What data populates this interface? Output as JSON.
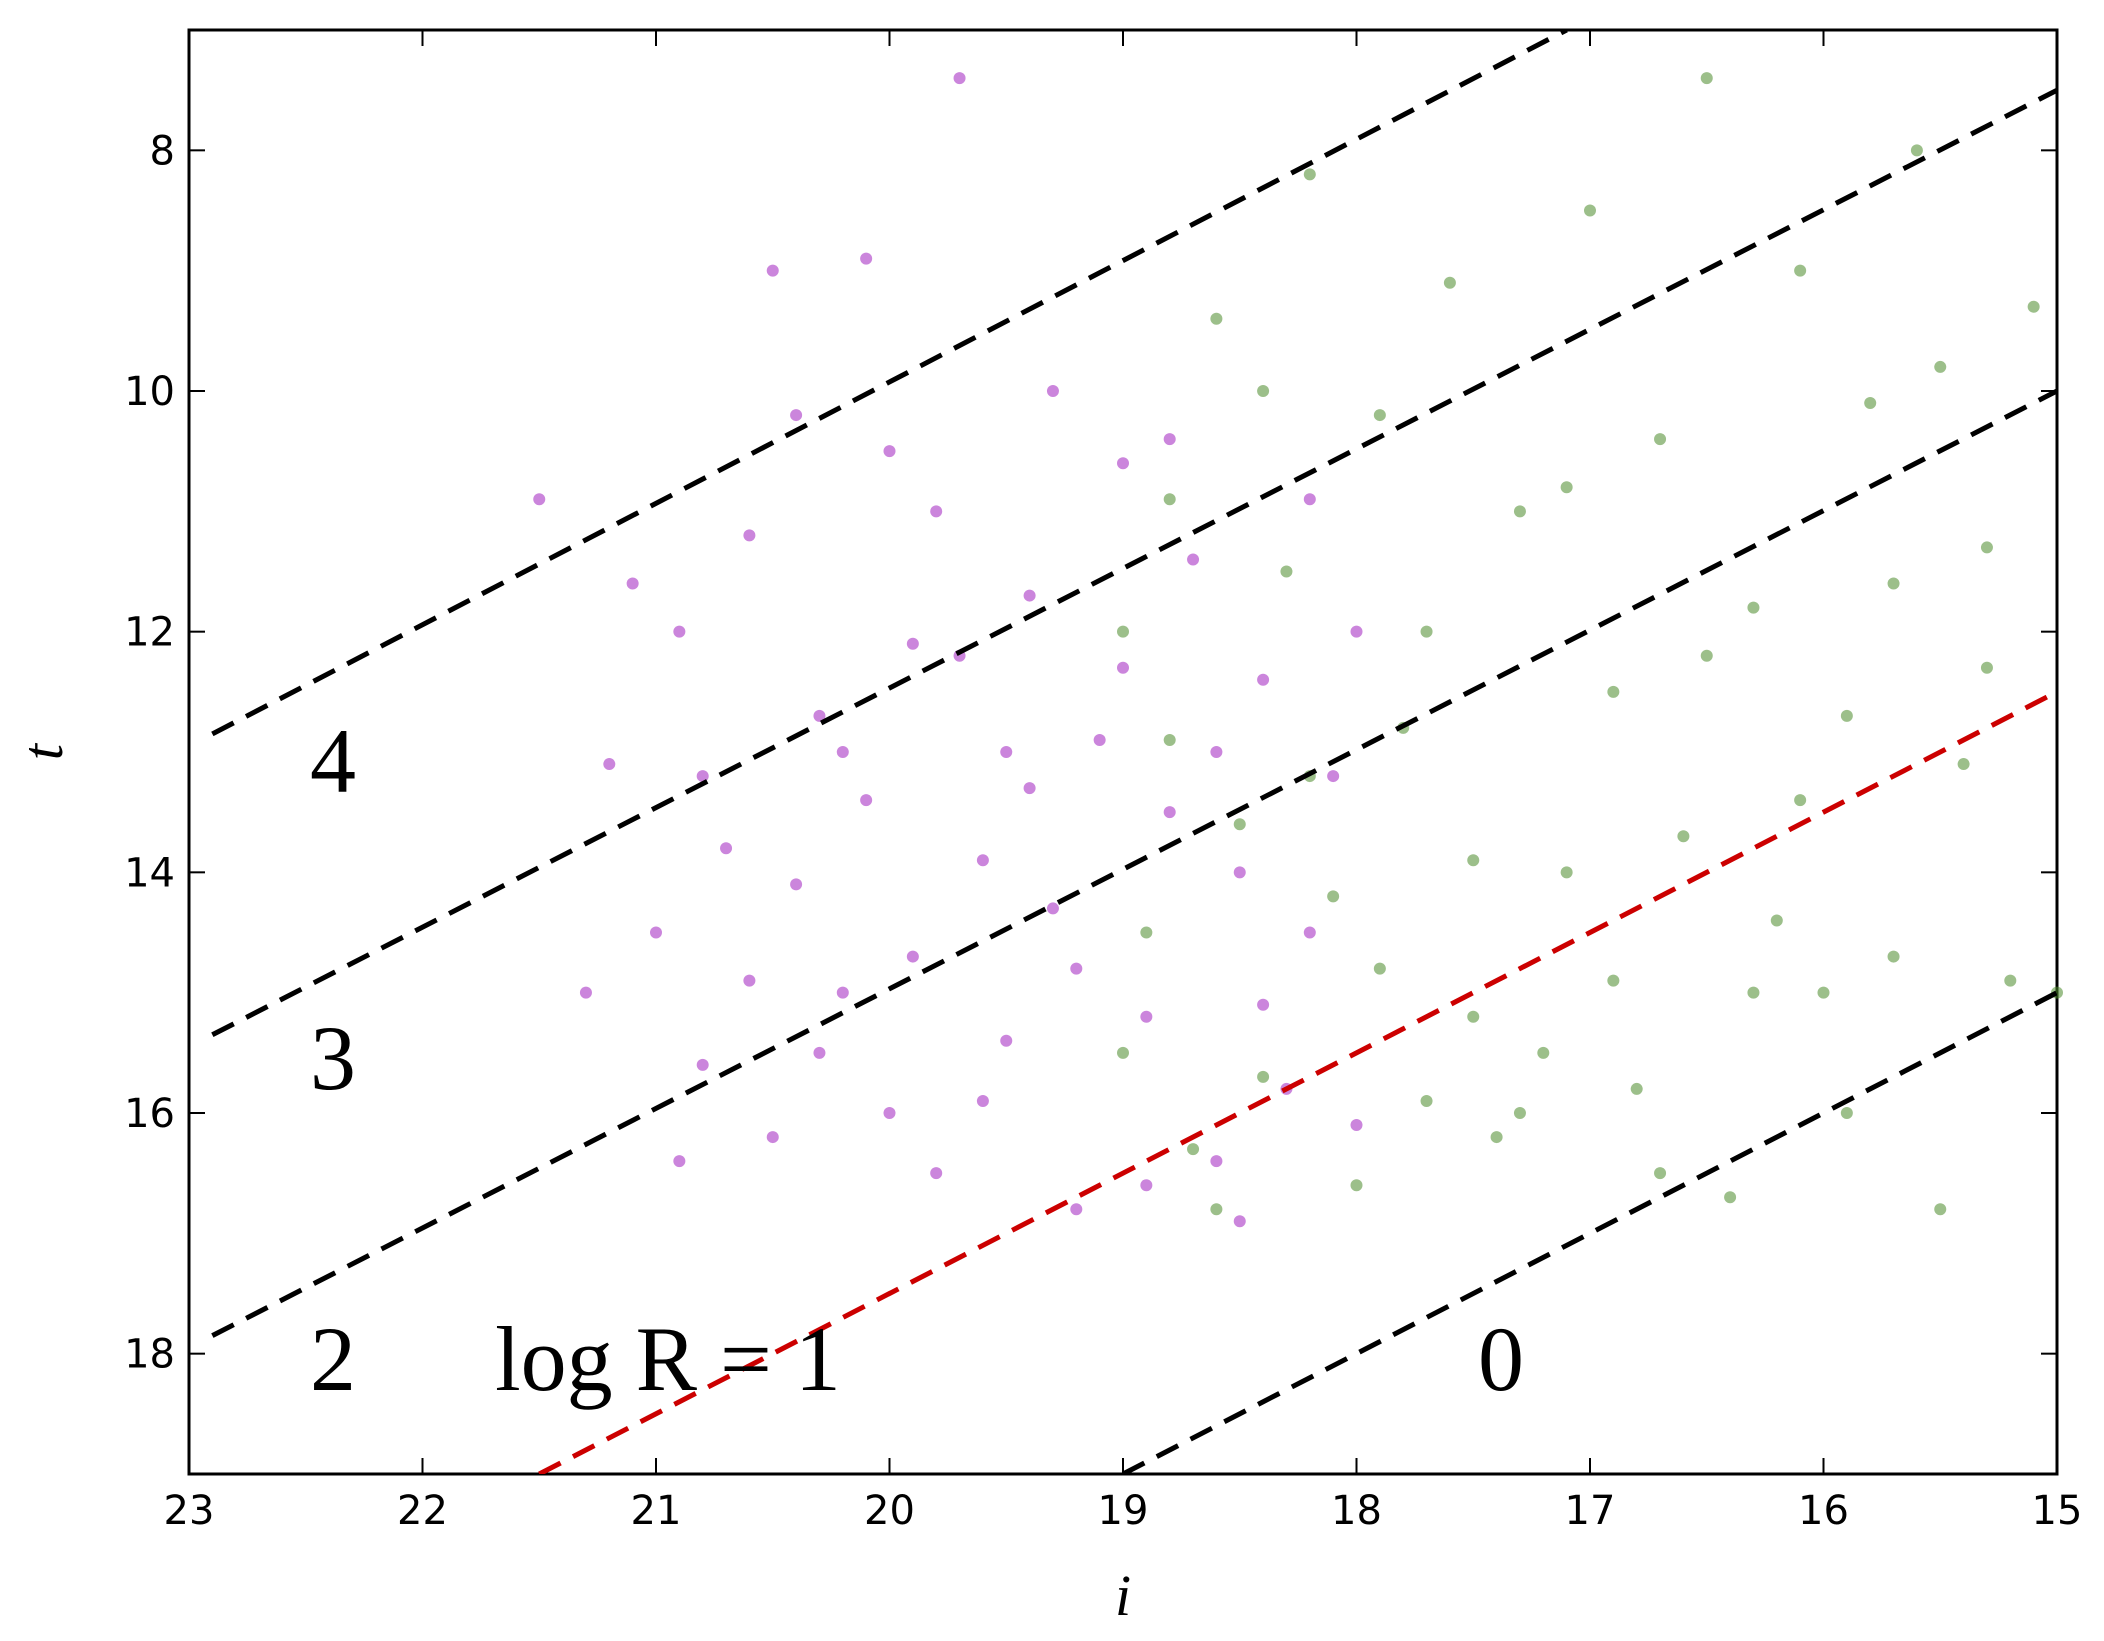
{
  "chart_data": {
    "type": "scatter",
    "x_label": "i",
    "y_label": "t",
    "xlim": [
      23,
      15
    ],
    "ylim": [
      19,
      7
    ],
    "xticks": [
      23,
      22,
      21,
      20,
      19,
      18,
      17,
      16,
      15
    ],
    "yticks": [
      8,
      10,
      12,
      14,
      16,
      18
    ],
    "series": [
      {
        "color": "#a020c0",
        "x": [
          21.2,
          21.0,
          20.9,
          20.8,
          20.7,
          20.6,
          20.5,
          20.4,
          20.3,
          20.2,
          20.1,
          20.0,
          19.9,
          19.8,
          19.7,
          19.6,
          19.5,
          19.4,
          19.3,
          19.2,
          19.1,
          19.0,
          18.9,
          18.8,
          18.7,
          18.6,
          18.5,
          18.4,
          18.3,
          18.2,
          18.1,
          18.0,
          21.3,
          21.1,
          20.9,
          20.6,
          20.4,
          20.2,
          20.0,
          19.8,
          19.6,
          19.4,
          19.2,
          19.0,
          18.8,
          18.6,
          18.4,
          18.2,
          18.0,
          20.5,
          21.5,
          19.7,
          20.1,
          20.8,
          19.5,
          19.9,
          20.3,
          19.3,
          18.9,
          18.5
        ],
        "values": [
          13.1,
          14.5,
          12.0,
          15.6,
          13.8,
          11.2,
          16.2,
          14.1,
          12.7,
          15.0,
          13.4,
          10.5,
          14.7,
          16.5,
          12.2,
          13.9,
          15.4,
          11.7,
          14.3,
          16.8,
          12.9,
          10.6,
          15.2,
          13.5,
          11.4,
          16.4,
          14.0,
          12.4,
          15.8,
          10.9,
          13.2,
          16.1,
          15.0,
          11.6,
          16.4,
          14.9,
          10.2,
          13.0,
          16.0,
          11.0,
          15.9,
          13.3,
          14.8,
          12.3,
          10.4,
          13.0,
          15.1,
          14.5,
          12.0,
          9.0,
          10.9,
          7.4,
          8.9,
          13.2,
          13.0,
          12.1,
          15.5,
          10.0,
          16.6,
          16.9
        ]
      },
      {
        "color": "#4a8a2a",
        "x": [
          19.0,
          18.9,
          18.8,
          18.7,
          18.6,
          18.5,
          18.4,
          18.3,
          18.2,
          18.1,
          18.0,
          17.9,
          17.8,
          17.7,
          17.6,
          17.5,
          17.4,
          17.3,
          17.2,
          17.1,
          17.0,
          16.9,
          16.8,
          16.7,
          16.6,
          16.5,
          16.4,
          16.3,
          16.2,
          16.1,
          16.0,
          15.9,
          15.8,
          15.7,
          15.6,
          15.5,
          15.4,
          15.3,
          15.2,
          15.1,
          19.0,
          18.8,
          18.6,
          18.4,
          18.2,
          17.9,
          17.7,
          17.5,
          17.3,
          17.1,
          16.9,
          16.7,
          16.5,
          16.3,
          16.1,
          15.9,
          15.7,
          15.5,
          15.3,
          15.0
        ],
        "values": [
          12.0,
          14.5,
          10.9,
          16.3,
          9.4,
          13.6,
          15.7,
          11.5,
          8.2,
          14.2,
          16.6,
          10.2,
          12.8,
          15.9,
          9.1,
          13.9,
          16.2,
          11.0,
          15.5,
          14.0,
          8.5,
          12.5,
          15.8,
          10.4,
          13.7,
          7.4,
          16.7,
          11.8,
          14.4,
          9.0,
          15.0,
          12.7,
          10.1,
          14.7,
          8.0,
          16.8,
          13.1,
          11.3,
          14.9,
          9.3,
          15.5,
          12.9,
          16.8,
          10.0,
          13.2,
          14.8,
          12.0,
          15.2,
          16.0,
          10.8,
          14.9,
          16.5,
          12.2,
          15.0,
          13.4,
          16.0,
          11.6,
          9.8,
          12.3,
          15.0
        ]
      }
    ],
    "lines": [
      {
        "color": "#000000",
        "x": [
          22.9,
          17.1
        ],
        "values": [
          12.85,
          7.0
        ]
      },
      {
        "color": "#000000",
        "x": [
          22.9,
          15
        ],
        "values": [
          15.35,
          7.5
        ]
      },
      {
        "color": "#000000",
        "x": [
          22.9,
          15
        ],
        "values": [
          17.85,
          10.0
        ]
      },
      {
        "color": "#cc0000",
        "x": [
          21.5,
          15
        ],
        "values": [
          19,
          12.5
        ]
      },
      {
        "color": "#000000",
        "x": [
          19,
          15
        ],
        "values": [
          19,
          15.0
        ]
      }
    ],
    "annotations": [
      "4",
      "3",
      "2",
      "log R = 1",
      "0"
    ]
  }
}
